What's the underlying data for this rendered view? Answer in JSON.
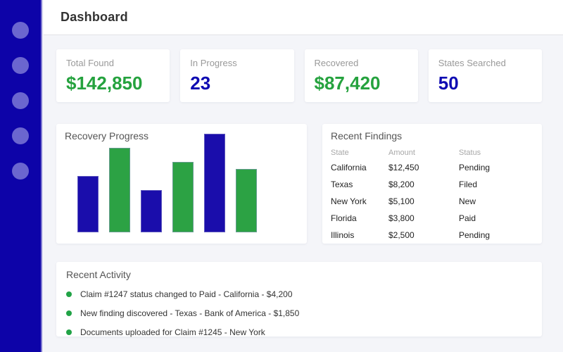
{
  "app": {
    "title": "Dashboard"
  },
  "sidebar": {
    "nav_dot_count": 5,
    "background": "#0d03a8",
    "dot_color": "#6b66cf"
  },
  "stats": [
    {
      "label": "Total Found",
      "value": "$142,850",
      "accent": "green"
    },
    {
      "label": "In Progress",
      "value": "23",
      "accent": "blue"
    },
    {
      "label": "Recovered",
      "value": "$87,420",
      "accent": "green"
    },
    {
      "label": "States Searched",
      "value": "50",
      "accent": "blue"
    }
  ],
  "chart_data": {
    "type": "bar",
    "title": "Recovery Progress",
    "values": [
      40,
      60,
      30,
      50,
      70,
      45
    ],
    "bar_color_pattern": [
      "blue",
      "green",
      "blue",
      "green",
      "blue",
      "green"
    ],
    "series_colors": {
      "blue": "#1a0dab",
      "green": "#2ca244"
    },
    "xlabel": "",
    "ylabel": "",
    "axes_visible": false,
    "gridlines": false,
    "legend": false,
    "ylim": [
      0,
      70
    ]
  },
  "findings": {
    "title": "Recent Findings",
    "columns": [
      "State",
      "Amount",
      "Status"
    ],
    "rows": [
      {
        "state": "California",
        "amount": "$12,450",
        "status": "Pending"
      },
      {
        "state": "Texas",
        "amount": "$8,200",
        "status": "Filed"
      },
      {
        "state": "New York",
        "amount": "$5,100",
        "status": "New"
      },
      {
        "state": "Florida",
        "amount": "$3,800",
        "status": "Paid"
      },
      {
        "state": "Illinois",
        "amount": "$2,500",
        "status": "Pending"
      }
    ]
  },
  "activity": {
    "title": "Recent Activity",
    "items": [
      "Claim #1247 status changed to Paid - California - $4,200",
      "New finding discovered - Texas - Bank of America - $1,850",
      "Documents uploaded for Claim #1245 - New York"
    ]
  },
  "colors": {
    "green_accent": "#25a23e",
    "blue_accent": "#0e0ab2",
    "background": "#f4f5f9",
    "activity_bullet": "#21a346"
  }
}
